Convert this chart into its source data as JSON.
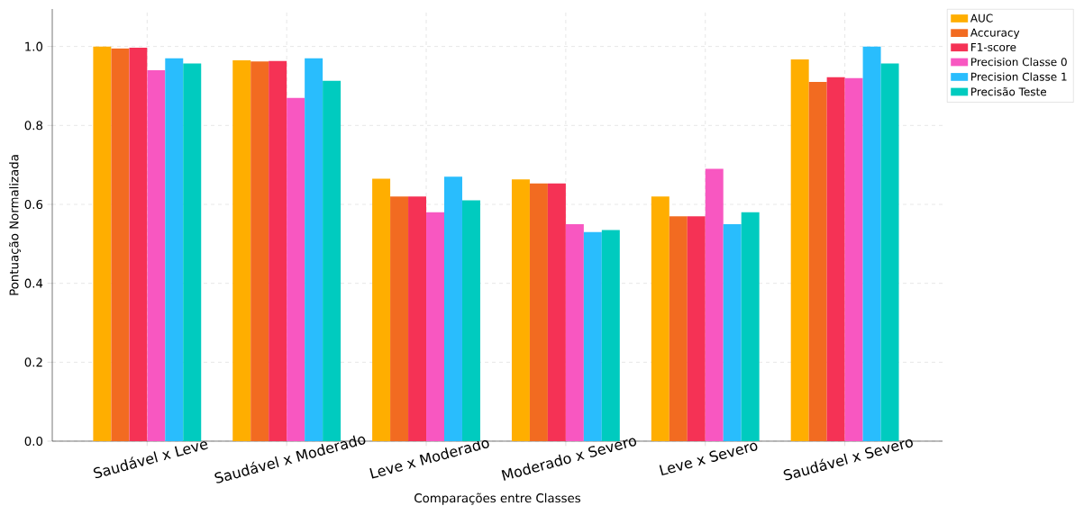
{
  "chart_data": {
    "type": "bar",
    "xlabel": "Comparações entre Classes",
    "ylabel": "Pontuação Normalizada",
    "categories": [
      "Saudável x Leve",
      "Saudável x Moderado",
      "Leve x Moderado",
      "Moderado x Severo",
      "Leve x Severo",
      "Saudável x Severo"
    ],
    "series": [
      {
        "name": "AUC",
        "color": "#ffae00",
        "values": [
          1.0,
          0.965,
          0.665,
          0.663,
          0.62,
          0.967
        ]
      },
      {
        "name": "Accuracy",
        "color": "#f26b21",
        "values": [
          0.995,
          0.962,
          0.62,
          0.653,
          0.57,
          0.91
        ]
      },
      {
        "name": "F1-score",
        "color": "#f53255",
        "values": [
          0.997,
          0.963,
          0.62,
          0.653,
          0.57,
          0.922
        ]
      },
      {
        "name": "Precision Classe 0",
        "color": "#f857c1",
        "values": [
          0.94,
          0.87,
          0.58,
          0.55,
          0.69,
          0.92
        ]
      },
      {
        "name": "Precision Classe 1",
        "color": "#29bdfd",
        "values": [
          0.97,
          0.97,
          0.67,
          0.53,
          0.55,
          1.0
        ]
      },
      {
        "name": "Precisão Teste",
        "color": "#00cbbf",
        "values": [
          0.957,
          0.913,
          0.61,
          0.535,
          0.58,
          0.957
        ]
      }
    ],
    "ylim": [
      0,
      1.095
    ],
    "yticks": [
      {
        "value": 0,
        "label": "0.0"
      },
      {
        "value": 0.2,
        "label": "0.2"
      },
      {
        "value": 0.4,
        "label": "0.4"
      },
      {
        "value": 0.6,
        "label": "0.6"
      },
      {
        "value": 0.8,
        "label": "0.8"
      },
      {
        "value": 1.0,
        "label": "1.0"
      }
    ],
    "grid": true,
    "legend": "top right"
  }
}
